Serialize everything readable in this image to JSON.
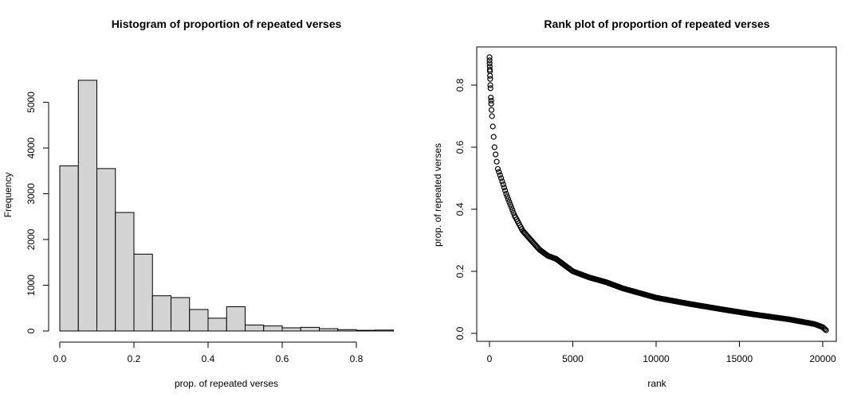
{
  "chart_data": [
    {
      "type": "histogram",
      "title": "Histogram of proportion of repeated verses",
      "xlabel": "prop. of repeated verses",
      "ylabel": "Frequency",
      "xlim": [
        0,
        0.9
      ],
      "ylim": [
        0,
        5500
      ],
      "xticks": [
        "0.0",
        "0.2",
        "0.4",
        "0.6",
        "0.8"
      ],
      "yticks": [
        "0",
        "1000",
        "2000",
        "3000",
        "4000",
        "5000"
      ],
      "bin_edges": [
        0,
        0.05,
        0.1,
        0.15,
        0.2,
        0.25,
        0.3,
        0.35,
        0.4,
        0.45,
        0.5,
        0.55,
        0.6,
        0.65,
        0.7,
        0.75,
        0.8,
        0.85,
        0.9
      ],
      "values": [
        3610,
        5480,
        3550,
        2590,
        1680,
        770,
        730,
        470,
        280,
        530,
        130,
        110,
        70,
        80,
        50,
        30,
        15,
        20
      ],
      "bar_fill": "#d3d3d3",
      "bar_stroke": "#000000"
    },
    {
      "type": "scatter",
      "title": "Rank plot of proportion of repeated verses",
      "xlabel": "rank",
      "ylabel": "prop. of repeated verses",
      "xlim": [
        0,
        20200
      ],
      "ylim": [
        0,
        0.89
      ],
      "xticks": [
        "0",
        "5000",
        "10000",
        "15000",
        "20000"
      ],
      "yticks": [
        "0.0",
        "0.2",
        "0.4",
        "0.6",
        "0.8"
      ],
      "x": [
        1,
        50,
        150,
        300,
        500,
        700,
        1000,
        1500,
        2000,
        2500,
        3000,
        3500,
        4000,
        5000,
        6000,
        7000,
        8000,
        9000,
        10000,
        12000,
        14000,
        16000,
        18000,
        19500,
        20000,
        20200
      ],
      "y": [
        0.89,
        0.8,
        0.7,
        0.6,
        0.53,
        0.5,
        0.45,
        0.38,
        0.33,
        0.3,
        0.27,
        0.25,
        0.24,
        0.2,
        0.18,
        0.165,
        0.145,
        0.13,
        0.115,
        0.095,
        0.077,
        0.06,
        0.045,
        0.03,
        0.02,
        0.01
      ],
      "marker": "open-circle",
      "point_color": "#000000"
    }
  ]
}
